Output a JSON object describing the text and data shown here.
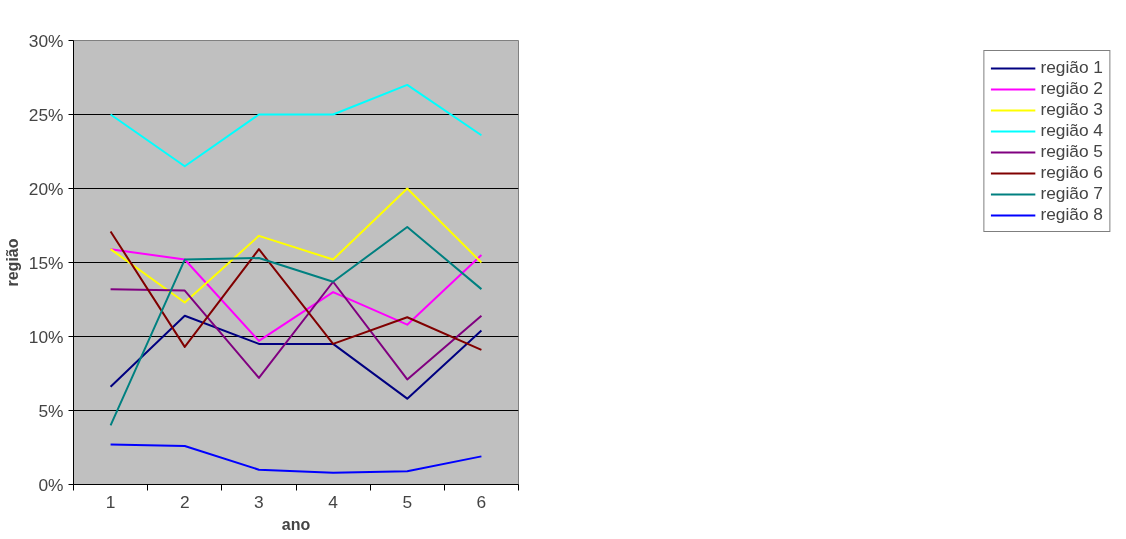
{
  "chart_data": {
    "type": "line",
    "xlabel": "ano",
    "ylabel": "região",
    "categories": [
      "1",
      "2",
      "3",
      "4",
      "5",
      "6"
    ],
    "series": [
      {
        "name": "região 1",
        "color": "#000080",
        "values": [
          6.6,
          11.4,
          9.5,
          9.5,
          5.8,
          10.4
        ]
      },
      {
        "name": "região 2",
        "color": "#ff00ff",
        "values": [
          15.9,
          15.2,
          9.7,
          13.0,
          10.8,
          15.5
        ]
      },
      {
        "name": "região 3",
        "color": "#ffff00",
        "values": [
          15.9,
          12.3,
          16.8,
          15.2,
          20.0,
          15.0
        ]
      },
      {
        "name": "região 4",
        "color": "#00ffff",
        "values": [
          25.0,
          21.5,
          25.0,
          25.0,
          27.0,
          23.6
        ]
      },
      {
        "name": "região 5",
        "color": "#800080",
        "values": [
          13.2,
          13.1,
          7.2,
          13.7,
          7.1,
          11.4
        ]
      },
      {
        "name": "região 6",
        "color": "#800000",
        "values": [
          17.1,
          9.3,
          15.9,
          9.5,
          11.3,
          9.1
        ]
      },
      {
        "name": "região 7",
        "color": "#008080",
        "values": [
          4.0,
          15.2,
          15.3,
          13.7,
          17.4,
          13.2
        ]
      },
      {
        "name": "região 8",
        "color": "#0000ff",
        "values": [
          2.7,
          2.6,
          1.0,
          0.8,
          0.9,
          1.9
        ]
      }
    ],
    "ylim": [
      0,
      30
    ],
    "yticks": [
      {
        "value": 0,
        "label": "0%"
      },
      {
        "value": 5,
        "label": "5%"
      },
      {
        "value": 10,
        "label": "10%"
      },
      {
        "value": 15,
        "label": "15%"
      },
      {
        "value": 20,
        "label": "20%"
      },
      {
        "value": 25,
        "label": "25%"
      },
      {
        "value": 30,
        "label": "30%"
      }
    ],
    "grid": "y",
    "legend": "right",
    "marker": "none",
    "line_style": "solid"
  }
}
